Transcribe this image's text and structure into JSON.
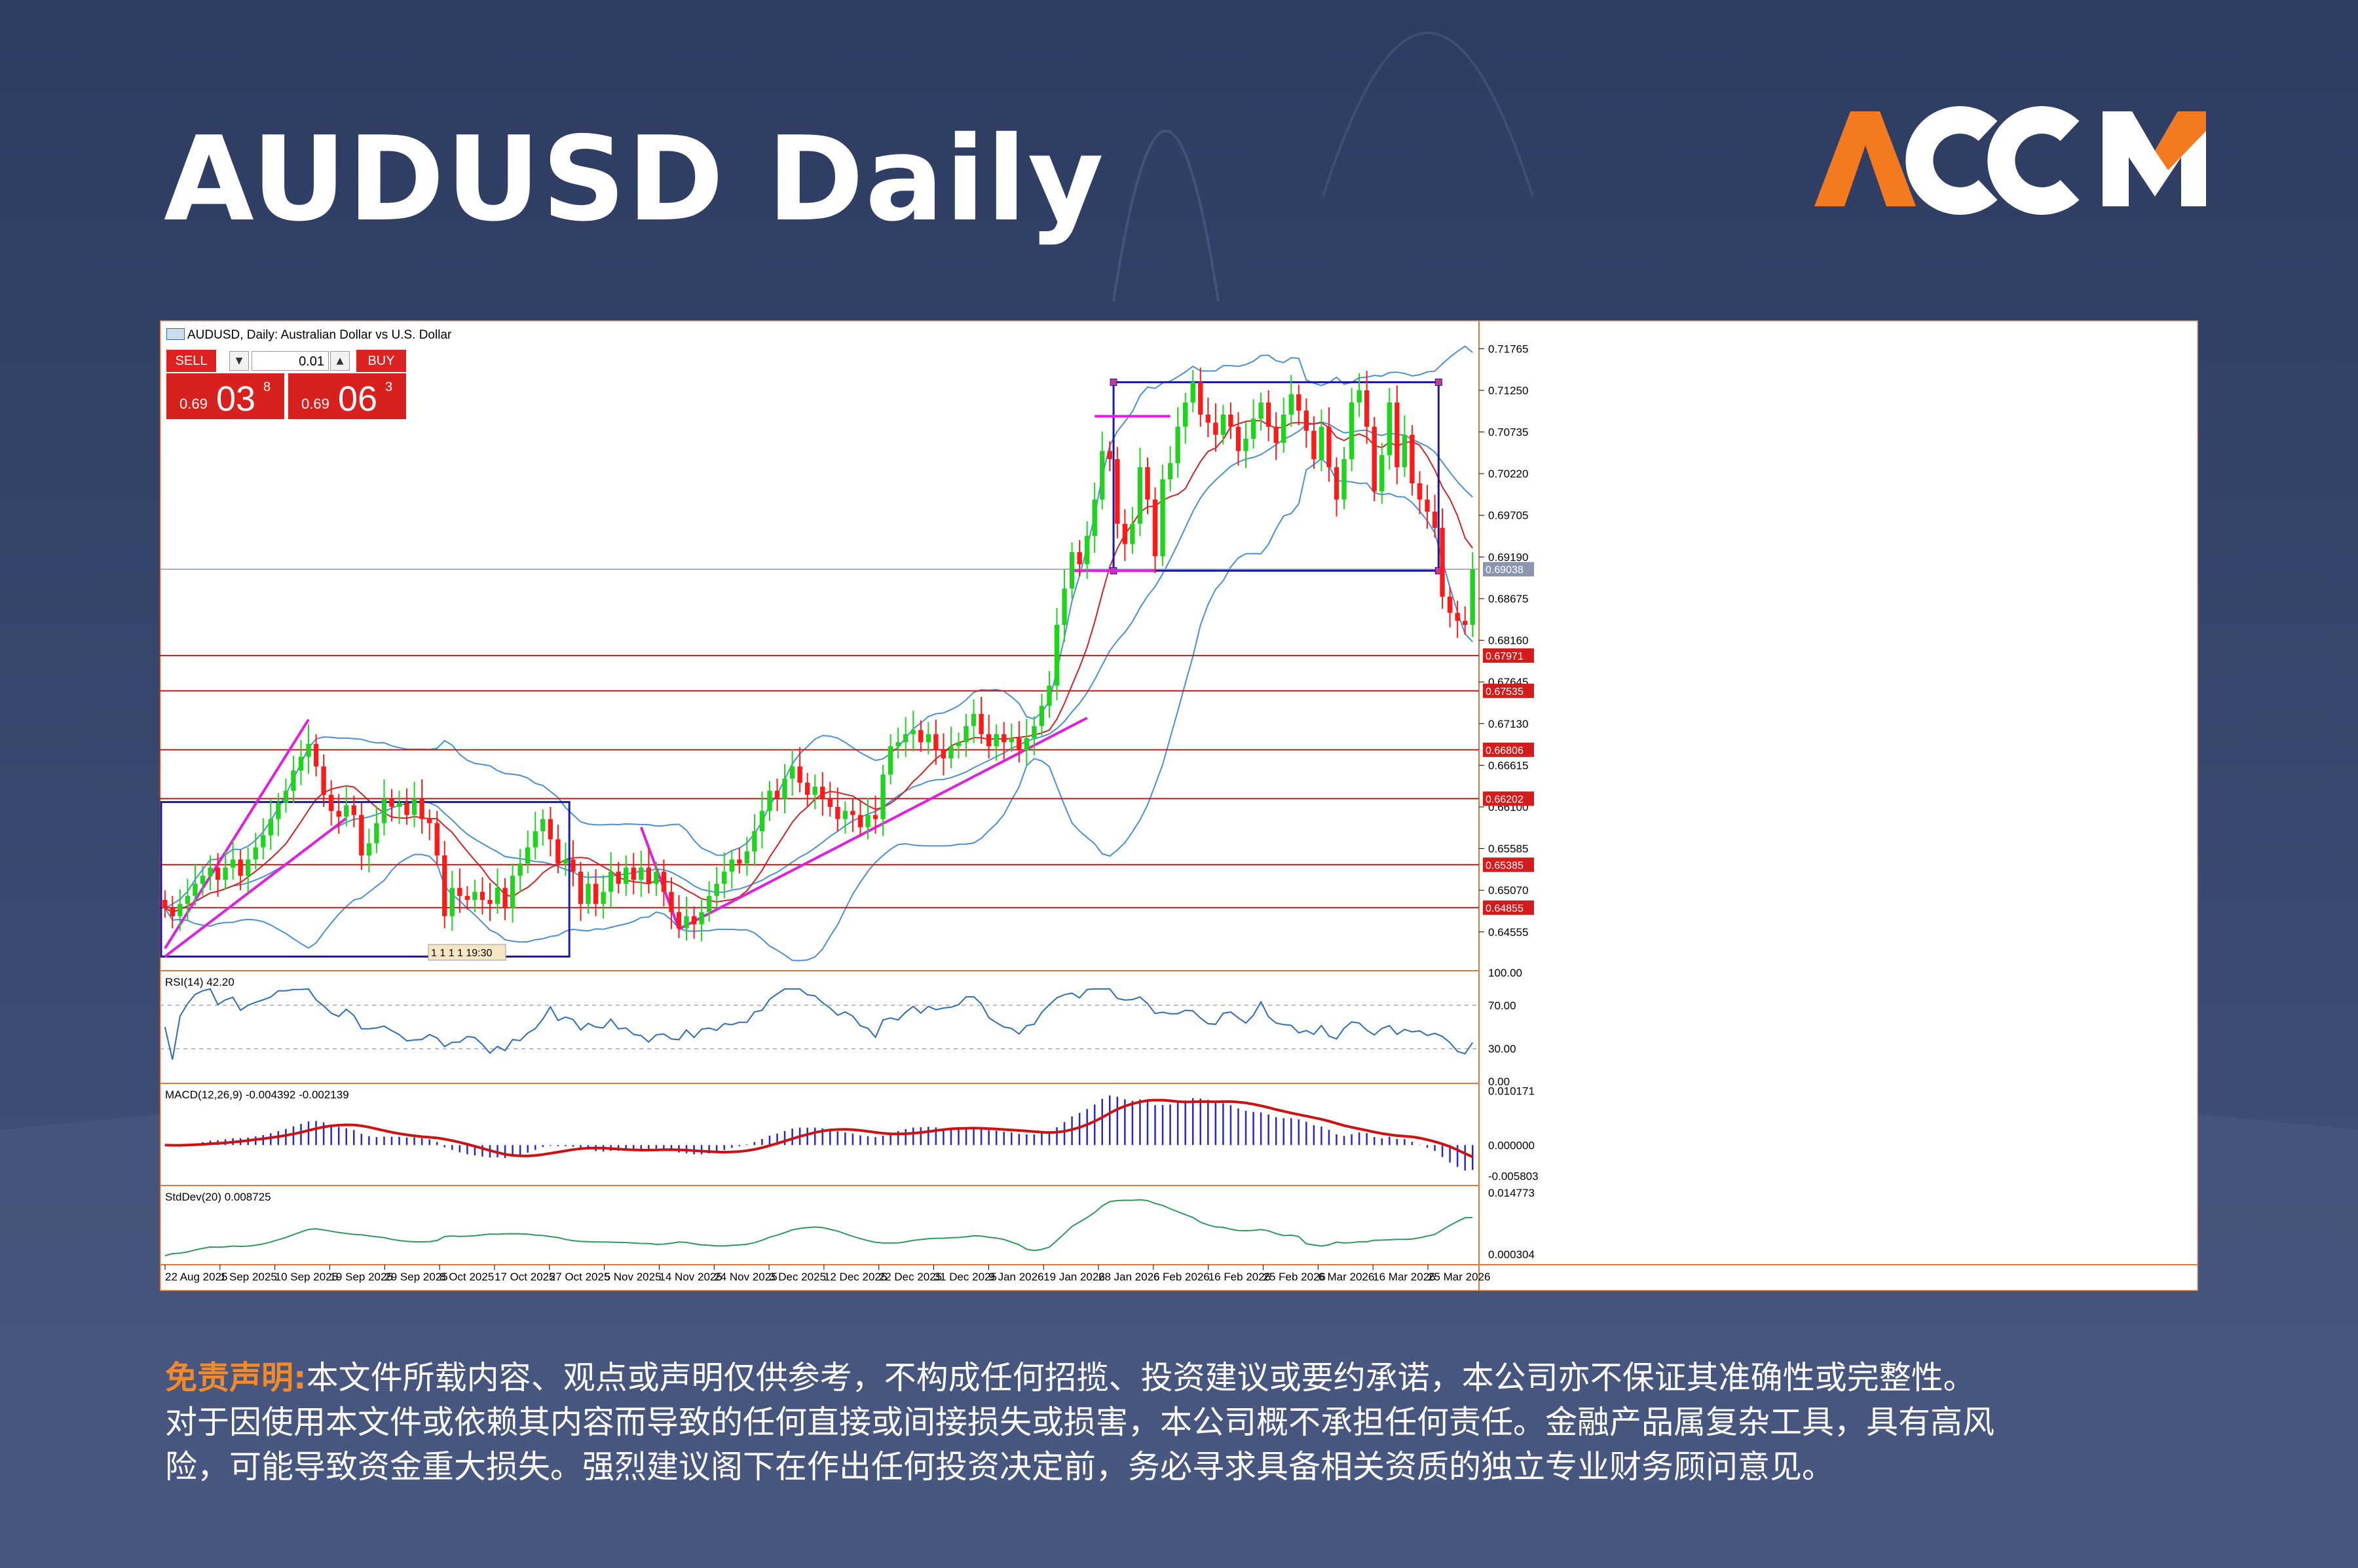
{
  "page": {
    "title": "AUDUSD Daily",
    "brand": "ACCM",
    "brand_colors": {
      "orange": "#f47a20",
      "white": "#ffffff"
    }
  },
  "chart_window": {
    "caption": "AUDUSD, Daily:  Australian Dollar vs U.S. Dollar",
    "trade_panel": {
      "sell_label": "SELL",
      "buy_label": "BUY",
      "lot_value": "0.01",
      "sell_small": "0.69",
      "sell_big": "03",
      "sell_sup": "8",
      "buy_small": "0.69",
      "buy_big": "06",
      "buy_sup": "3"
    },
    "time_marker": "1 1 1 1 19:30"
  },
  "disclaimer": {
    "lead": "免责声明:",
    "lines": [
      "本文件所载内容、观点或声明仅供参考，不构成任何招揽、投资建议或要约承诺，本公司亦不保证其准确性或完整性。",
      "对于因使用本文件或依赖其内容而导致的任何直接或间接损失或损害，本公司概不承担任何责任。金融产品属复杂工具，具有高风",
      "险，可能导致资金重大损失。强烈建议阁下在作出任何投资决定前，务必寻求具备相关资质的独立专业财务顾问意见。"
    ]
  },
  "chart_data": {
    "type": "candlestick",
    "symbol": "AUDUSD",
    "timeframe": "Daily",
    "price_axis": {
      "ticks": [
        "0.71765",
        "0.71250",
        "0.70735",
        "0.70220",
        "0.69705",
        "0.69190",
        "0.68675",
        "0.68160",
        "0.67645",
        "0.67130",
        "0.66615",
        "0.66100",
        "0.65585",
        "0.65070",
        "0.64555"
      ],
      "range": [
        0.641,
        0.7197
      ],
      "current_price_label": "0.69038",
      "current_price": 0.69038
    },
    "x_axis_labels": [
      "22 Aug 2025",
      "1 Sep 2025",
      "10 Sep 2025",
      "19 Sep 2025",
      "29 Sep 2025",
      "8 Oct 2025",
      "17 Oct 2025",
      "27 Oct 2025",
      "5 Nov 2025",
      "14 Nov 2025",
      "24 Nov 2025",
      "3 Dec 2025",
      "12 Dec 2025",
      "22 Dec 2025",
      "31 Dec 2025",
      "9 Jan 2026",
      "19 Jan 2026",
      "28 Jan 2026",
      "6 Feb 2026",
      "16 Feb 2026",
      "25 Feb 2026",
      "6 Mar 2026",
      "16 Mar 2026",
      "25 Mar 2026"
    ],
    "horizontal_levels": [
      {
        "label": "0.67971",
        "value": 0.67971
      },
      {
        "label": "0.67535",
        "value": 0.67535
      },
      {
        "label": "0.66806",
        "value": 0.66806
      },
      {
        "label": "0.66202",
        "value": 0.66202
      },
      {
        "label": "0.65385",
        "value": 0.65385
      },
      {
        "label": "0.64855",
        "value": 0.64855
      }
    ],
    "range_boxes": [
      {
        "from_day": 0,
        "to_day": 53,
        "high": 0.6616,
        "low": 0.6425
      },
      {
        "from_day": 126,
        "to_day": 168,
        "high": 0.7135,
        "low": 0.6902
      }
    ],
    "trendlines": [
      {
        "from": [
          0,
          0.6425
        ],
        "to": [
          24,
          0.6596
        ]
      },
      {
        "from": [
          0,
          0.6435
        ],
        "to": [
          19,
          0.6718
        ]
      },
      {
        "from": [
          63,
          0.6585
        ],
        "to": [
          68,
          0.6459
        ]
      },
      {
        "from": [
          68,
          0.6459
        ],
        "to": [
          122,
          0.672
        ]
      },
      {
        "from": [
          120,
          0.6902
        ],
        "to": [
          131,
          0.6902
        ]
      },
      {
        "from": [
          123,
          0.7093
        ],
        "to": [
          133,
          0.7093
        ]
      }
    ],
    "candles": [
      {
        "d": 0,
        "o": 0.6495,
        "c": 0.6485
      },
      {
        "d": 1,
        "o": 0.6485,
        "c": 0.6475
      },
      {
        "d": 2,
        "o": 0.6475,
        "c": 0.649
      },
      {
        "d": 3,
        "o": 0.649,
        "c": 0.65
      },
      {
        "d": 4,
        "o": 0.65,
        "c": 0.6515
      },
      {
        "d": 5,
        "o": 0.6515,
        "c": 0.6525
      },
      {
        "d": 6,
        "o": 0.6525,
        "c": 0.6535
      },
      {
        "d": 7,
        "o": 0.6535,
        "c": 0.652
      },
      {
        "d": 8,
        "o": 0.652,
        "c": 0.6535
      },
      {
        "d": 9,
        "o": 0.6535,
        "c": 0.6545
      },
      {
        "d": 10,
        "o": 0.6545,
        "c": 0.6525
      },
      {
        "d": 11,
        "o": 0.6525,
        "c": 0.6545
      },
      {
        "d": 12,
        "o": 0.6545,
        "c": 0.656
      },
      {
        "d": 13,
        "o": 0.656,
        "c": 0.6575
      },
      {
        "d": 14,
        "o": 0.6575,
        "c": 0.6595
      },
      {
        "d": 15,
        "o": 0.6595,
        "c": 0.6615
      },
      {
        "d": 16,
        "o": 0.6615,
        "c": 0.663
      },
      {
        "d": 17,
        "o": 0.663,
        "c": 0.6655
      },
      {
        "d": 18,
        "o": 0.6655,
        "c": 0.6672
      },
      {
        "d": 19,
        "o": 0.6672,
        "c": 0.6688
      },
      {
        "d": 20,
        "o": 0.6688,
        "c": 0.666
      },
      {
        "d": 21,
        "o": 0.666,
        "c": 0.6625
      },
      {
        "d": 22,
        "o": 0.6625,
        "c": 0.6605
      },
      {
        "d": 23,
        "o": 0.6605,
        "c": 0.6598
      },
      {
        "d": 24,
        "o": 0.6598,
        "c": 0.6612
      },
      {
        "d": 25,
        "o": 0.6612,
        "c": 0.66
      },
      {
        "d": 26,
        "o": 0.66,
        "c": 0.655
      },
      {
        "d": 27,
        "o": 0.655,
        "c": 0.6565
      },
      {
        "d": 28,
        "o": 0.6565,
        "c": 0.659
      },
      {
        "d": 29,
        "o": 0.659,
        "c": 0.662
      },
      {
        "d": 30,
        "o": 0.662,
        "c": 0.661
      },
      {
        "d": 31,
        "o": 0.661,
        "c": 0.6615
      },
      {
        "d": 32,
        "o": 0.6615,
        "c": 0.66
      },
      {
        "d": 33,
        "o": 0.66,
        "c": 0.662
      },
      {
        "d": 34,
        "o": 0.662,
        "c": 0.6595
      },
      {
        "d": 35,
        "o": 0.6595,
        "c": 0.659
      },
      {
        "d": 36,
        "o": 0.659,
        "c": 0.655
      },
      {
        "d": 37,
        "o": 0.655,
        "c": 0.6475
      },
      {
        "d": 38,
        "o": 0.6475,
        "c": 0.651
      },
      {
        "d": 39,
        "o": 0.651,
        "c": 0.65
      },
      {
        "d": 40,
        "o": 0.65,
        "c": 0.6495
      },
      {
        "d": 41,
        "o": 0.6495,
        "c": 0.6505
      },
      {
        "d": 42,
        "o": 0.6505,
        "c": 0.6495
      },
      {
        "d": 43,
        "o": 0.6495,
        "c": 0.649
      },
      {
        "d": 44,
        "o": 0.649,
        "c": 0.651
      },
      {
        "d": 45,
        "o": 0.651,
        "c": 0.6485
      },
      {
        "d": 46,
        "o": 0.6485,
        "c": 0.6525
      },
      {
        "d": 47,
        "o": 0.6525,
        "c": 0.654
      },
      {
        "d": 48,
        "o": 0.654,
        "c": 0.656
      },
      {
        "d": 49,
        "o": 0.656,
        "c": 0.658
      },
      {
        "d": 50,
        "o": 0.658,
        "c": 0.6595
      },
      {
        "d": 51,
        "o": 0.6595,
        "c": 0.657
      },
      {
        "d": 52,
        "o": 0.657,
        "c": 0.654
      },
      {
        "d": 53,
        "o": 0.654,
        "c": 0.6545
      },
      {
        "d": 54,
        "o": 0.6545,
        "c": 0.653
      },
      {
        "d": 55,
        "o": 0.653,
        "c": 0.649
      },
      {
        "d": 56,
        "o": 0.649,
        "c": 0.6515
      },
      {
        "d": 57,
        "o": 0.6515,
        "c": 0.649
      },
      {
        "d": 58,
        "o": 0.649,
        "c": 0.6505
      },
      {
        "d": 59,
        "o": 0.6505,
        "c": 0.653
      },
      {
        "d": 60,
        "o": 0.653,
        "c": 0.6515
      },
      {
        "d": 61,
        "o": 0.6515,
        "c": 0.6535
      },
      {
        "d": 62,
        "o": 0.6535,
        "c": 0.652
      },
      {
        "d": 63,
        "o": 0.652,
        "c": 0.6535
      },
      {
        "d": 64,
        "o": 0.6535,
        "c": 0.6515
      },
      {
        "d": 65,
        "o": 0.6515,
        "c": 0.653
      },
      {
        "d": 66,
        "o": 0.653,
        "c": 0.6505
      },
      {
        "d": 67,
        "o": 0.6505,
        "c": 0.648
      },
      {
        "d": 68,
        "o": 0.648,
        "c": 0.646
      },
      {
        "d": 69,
        "o": 0.646,
        "c": 0.6475
      },
      {
        "d": 70,
        "o": 0.6475,
        "c": 0.6465
      },
      {
        "d": 71,
        "o": 0.6465,
        "c": 0.648
      },
      {
        "d": 72,
        "o": 0.648,
        "c": 0.65
      },
      {
        "d": 73,
        "o": 0.65,
        "c": 0.6515
      },
      {
        "d": 74,
        "o": 0.6515,
        "c": 0.653
      },
      {
        "d": 75,
        "o": 0.653,
        "c": 0.6545
      },
      {
        "d": 76,
        "o": 0.6545,
        "c": 0.654
      },
      {
        "d": 77,
        "o": 0.654,
        "c": 0.6555
      },
      {
        "d": 78,
        "o": 0.6555,
        "c": 0.658
      },
      {
        "d": 79,
        "o": 0.658,
        "c": 0.6605
      },
      {
        "d": 80,
        "o": 0.6605,
        "c": 0.663
      },
      {
        "d": 81,
        "o": 0.663,
        "c": 0.662
      },
      {
        "d": 82,
        "o": 0.662,
        "c": 0.6645
      },
      {
        "d": 83,
        "o": 0.6645,
        "c": 0.666
      },
      {
        "d": 84,
        "o": 0.666,
        "c": 0.664
      },
      {
        "d": 85,
        "o": 0.664,
        "c": 0.6625
      },
      {
        "d": 86,
        "o": 0.6625,
        "c": 0.6635
      },
      {
        "d": 87,
        "o": 0.6635,
        "c": 0.662
      },
      {
        "d": 88,
        "o": 0.662,
        "c": 0.661
      },
      {
        "d": 89,
        "o": 0.661,
        "c": 0.6595
      },
      {
        "d": 90,
        "o": 0.6595,
        "c": 0.6605
      },
      {
        "d": 91,
        "o": 0.6605,
        "c": 0.66
      },
      {
        "d": 92,
        "o": 0.66,
        "c": 0.6585
      },
      {
        "d": 93,
        "o": 0.6585,
        "c": 0.66
      },
      {
        "d": 94,
        "o": 0.66,
        "c": 0.6595
      },
      {
        "d": 95,
        "o": 0.6595,
        "c": 0.665
      },
      {
        "d": 96,
        "o": 0.665,
        "c": 0.6685
      },
      {
        "d": 97,
        "o": 0.6685,
        "c": 0.669
      },
      {
        "d": 98,
        "o": 0.669,
        "c": 0.67
      },
      {
        "d": 99,
        "o": 0.67,
        "c": 0.6705
      },
      {
        "d": 100,
        "o": 0.6705,
        "c": 0.669
      },
      {
        "d": 101,
        "o": 0.669,
        "c": 0.67
      },
      {
        "d": 102,
        "o": 0.67,
        "c": 0.668
      },
      {
        "d": 103,
        "o": 0.668,
        "c": 0.667
      },
      {
        "d": 104,
        "o": 0.667,
        "c": 0.6685
      },
      {
        "d": 105,
        "o": 0.6685,
        "c": 0.669
      },
      {
        "d": 106,
        "o": 0.669,
        "c": 0.671
      },
      {
        "d": 107,
        "o": 0.671,
        "c": 0.6725
      },
      {
        "d": 108,
        "o": 0.6725,
        "c": 0.67
      },
      {
        "d": 109,
        "o": 0.67,
        "c": 0.6685
      },
      {
        "d": 110,
        "o": 0.6685,
        "c": 0.67
      },
      {
        "d": 111,
        "o": 0.67,
        "c": 0.669
      },
      {
        "d": 112,
        "o": 0.669,
        "c": 0.6695
      },
      {
        "d": 113,
        "o": 0.6695,
        "c": 0.668
      },
      {
        "d": 114,
        "o": 0.668,
        "c": 0.6695
      },
      {
        "d": 115,
        "o": 0.6695,
        "c": 0.671
      },
      {
        "d": 116,
        "o": 0.671,
        "c": 0.6735
      },
      {
        "d": 117,
        "o": 0.6735,
        "c": 0.676
      },
      {
        "d": 118,
        "o": 0.676,
        "c": 0.6835
      },
      {
        "d": 119,
        "o": 0.6835,
        "c": 0.688
      },
      {
        "d": 120,
        "o": 0.688,
        "c": 0.6925
      },
      {
        "d": 121,
        "o": 0.6925,
        "c": 0.691
      },
      {
        "d": 122,
        "o": 0.691,
        "c": 0.6945
      },
      {
        "d": 123,
        "o": 0.6945,
        "c": 0.699
      },
      {
        "d": 124,
        "o": 0.699,
        "c": 0.705
      },
      {
        "d": 125,
        "o": 0.705,
        "c": 0.704
      },
      {
        "d": 126,
        "o": 0.704,
        "c": 0.696
      },
      {
        "d": 127,
        "o": 0.696,
        "c": 0.6935
      },
      {
        "d": 128,
        "o": 0.6935,
        "c": 0.696
      },
      {
        "d": 129,
        "o": 0.696,
        "c": 0.703
      },
      {
        "d": 130,
        "o": 0.703,
        "c": 0.699
      },
      {
        "d": 131,
        "o": 0.699,
        "c": 0.692
      },
      {
        "d": 132,
        "o": 0.692,
        "c": 0.7015
      },
      {
        "d": 133,
        "o": 0.7015,
        "c": 0.7035
      },
      {
        "d": 134,
        "o": 0.7035,
        "c": 0.708
      },
      {
        "d": 135,
        "o": 0.708,
        "c": 0.711
      },
      {
        "d": 136,
        "o": 0.711,
        "c": 0.7135
      },
      {
        "d": 137,
        "o": 0.7135,
        "c": 0.7095
      },
      {
        "d": 138,
        "o": 0.7095,
        "c": 0.7085
      },
      {
        "d": 139,
        "o": 0.7085,
        "c": 0.707
      },
      {
        "d": 140,
        "o": 0.707,
        "c": 0.7095
      },
      {
        "d": 141,
        "o": 0.7095,
        "c": 0.708
      },
      {
        "d": 142,
        "o": 0.708,
        "c": 0.705
      },
      {
        "d": 143,
        "o": 0.705,
        "c": 0.7065
      },
      {
        "d": 144,
        "o": 0.7065,
        "c": 0.709
      },
      {
        "d": 145,
        "o": 0.709,
        "c": 0.711
      },
      {
        "d": 146,
        "o": 0.711,
        "c": 0.708
      },
      {
        "d": 147,
        "o": 0.708,
        "c": 0.706
      },
      {
        "d": 148,
        "o": 0.706,
        "c": 0.7095
      },
      {
        "d": 149,
        "o": 0.7095,
        "c": 0.712
      },
      {
        "d": 150,
        "o": 0.712,
        "c": 0.71
      },
      {
        "d": 151,
        "o": 0.71,
        "c": 0.7075
      },
      {
        "d": 152,
        "o": 0.7075,
        "c": 0.704
      },
      {
        "d": 153,
        "o": 0.704,
        "c": 0.708
      },
      {
        "d": 154,
        "o": 0.708,
        "c": 0.703
      },
      {
        "d": 155,
        "o": 0.703,
        "c": 0.699
      },
      {
        "d": 156,
        "o": 0.699,
        "c": 0.704
      },
      {
        "d": 157,
        "o": 0.704,
        "c": 0.711
      },
      {
        "d": 158,
        "o": 0.711,
        "c": 0.7125
      },
      {
        "d": 159,
        "o": 0.7125,
        "c": 0.708
      },
      {
        "d": 160,
        "o": 0.708,
        "c": 0.7
      },
      {
        "d": 161,
        "o": 0.7,
        "c": 0.7045
      },
      {
        "d": 162,
        "o": 0.7045,
        "c": 0.711
      },
      {
        "d": 163,
        "o": 0.711,
        "c": 0.703
      },
      {
        "d": 164,
        "o": 0.703,
        "c": 0.707
      },
      {
        "d": 165,
        "o": 0.707,
        "c": 0.701
      },
      {
        "d": 166,
        "o": 0.701,
        "c": 0.699
      },
      {
        "d": 167,
        "o": 0.699,
        "c": 0.6975
      },
      {
        "d": 168,
        "o": 0.6975,
        "c": 0.6955
      },
      {
        "d": 169,
        "o": 0.6955,
        "c": 0.687
      },
      {
        "d": 170,
        "o": 0.687,
        "c": 0.685
      },
      {
        "d": 171,
        "o": 0.685,
        "c": 0.684
      },
      {
        "d": 172,
        "o": 0.684,
        "c": 0.6835
      },
      {
        "d": 173,
        "o": 0.6835,
        "c": 0.6904
      }
    ],
    "indicators": [
      {
        "name": "RSI",
        "label": "RSI(14) 42.20",
        "ticks": [
          "100.00",
          "70.00",
          "30.00",
          "0.00"
        ],
        "range": [
          0,
          100
        ],
        "levels": [
          70,
          30
        ],
        "value": 42.2
      },
      {
        "name": "MACD",
        "label": "MACD(12,26,9) -0.004392 -0.002139",
        "ticks": [
          "0.010171",
          "0.000000",
          "-0.005803"
        ],
        "range": [
          -0.0072,
          0.0112
        ]
      },
      {
        "name": "StdDev",
        "label": "StdDev(20) 0.008725",
        "ticks": [
          "0.014773",
          "0.000304"
        ],
        "range": [
          -0.0015,
          0.016
        ]
      }
    ],
    "colors": {
      "bull": "#1fd31f",
      "bear": "#ff1a1a",
      "bands": "#4a8fd8",
      "ma": "#d22222",
      "trend": "#e020e0",
      "box": "#1a1aaa",
      "level": "#c01818",
      "rsi": "#2d6db8",
      "macd_hist": "#2828c8",
      "macd_signal": "#d01010",
      "stddev": "#2e9a5a"
    }
  }
}
